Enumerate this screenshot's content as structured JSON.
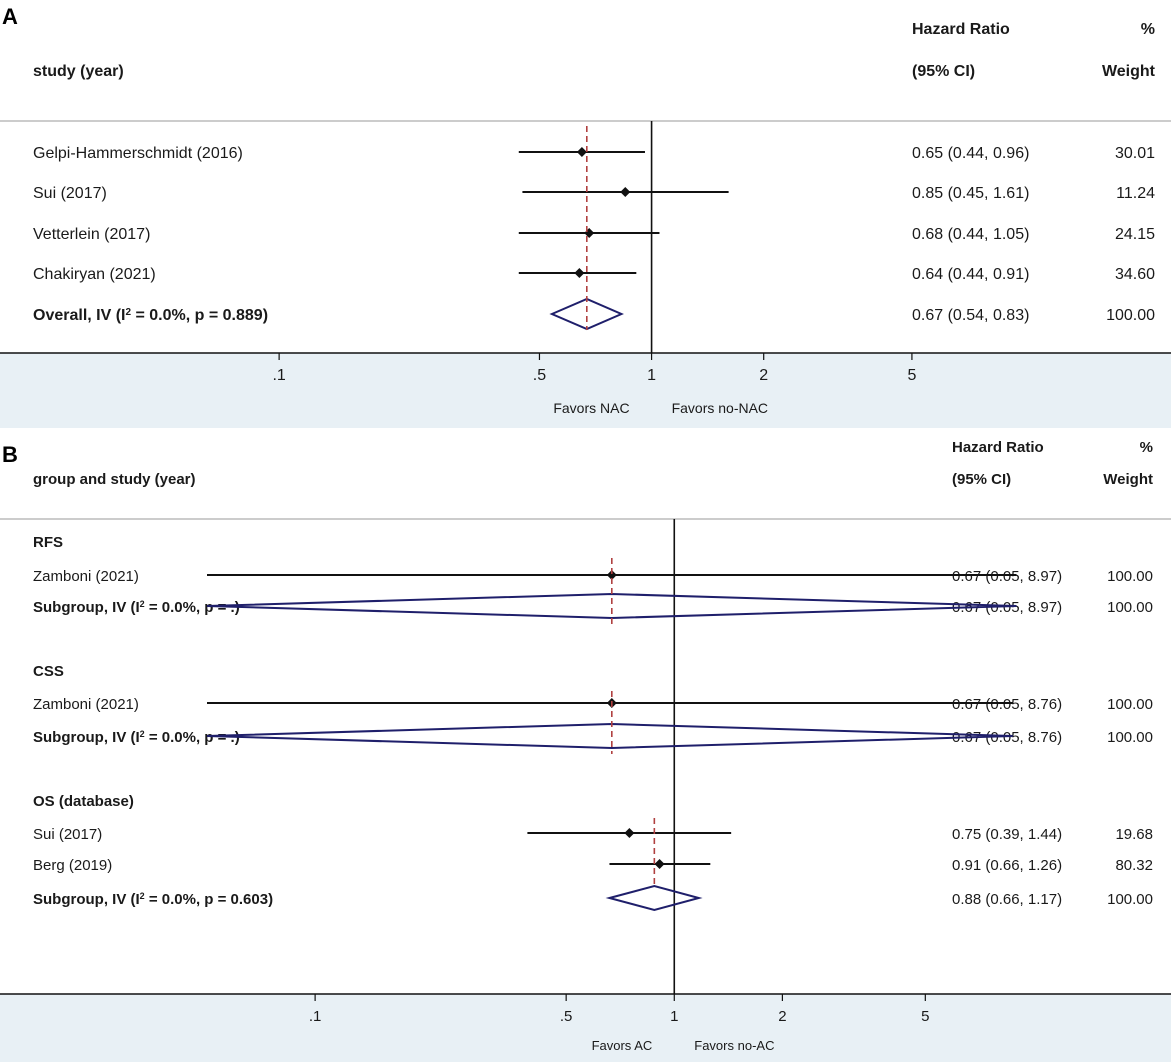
{
  "colors": {
    "axis_band": "#e8f0f5",
    "ci_line": "#111111",
    "diamond": "#1f1f6b",
    "ref_line": "#111111",
    "overall_line": "#b04040",
    "text": "#1a1a1a"
  },
  "chart_data": [
    {
      "type": "forest",
      "panel_label": "A",
      "header": {
        "study_col": "study (year)",
        "hr_col_line1": "Hazard Ratio",
        "hr_col_line2": "(95% CI)",
        "weight_col_line1": "%",
        "weight_col_line2": "Weight"
      },
      "x_scale": "log",
      "xlim": [
        0.05,
        9.0
      ],
      "x_ticks": [
        {
          "value": 0.1,
          "label": ".1"
        },
        {
          "value": 0.5,
          "label": ".5"
        },
        {
          "value": 1,
          "label": "1"
        },
        {
          "value": 2,
          "label": "2"
        },
        {
          "value": 5,
          "label": "5"
        }
      ],
      "favors_left": "Favors NAC",
      "favors_right": "Favors no-NAC",
      "pooled_estimate": 0.67,
      "rows": [
        {
          "kind": "study",
          "label": "Gelpi-Hammerschmidt (2016)",
          "hr": 0.65,
          "lo": 0.44,
          "hi": 0.96,
          "ci_text": "0.65 (0.44, 0.96)",
          "weight": "30.01"
        },
        {
          "kind": "study",
          "label": "Sui (2017)",
          "hr": 0.85,
          "lo": 0.45,
          "hi": 1.61,
          "ci_text": "0.85 (0.45, 1.61)",
          "weight": "11.24"
        },
        {
          "kind": "study",
          "label": "Vetterlein (2017)",
          "hr": 0.68,
          "lo": 0.44,
          "hi": 1.05,
          "ci_text": "0.68 (0.44, 1.05)",
          "weight": "24.15"
        },
        {
          "kind": "study",
          "label": "Chakiryan (2021)",
          "hr": 0.64,
          "lo": 0.44,
          "hi": 0.91,
          "ci_text": "0.64 (0.44, 0.91)",
          "weight": "34.60"
        },
        {
          "kind": "pooled",
          "label_pre": "Overall, IV (I",
          "label_sup": "2",
          "label_post": " = 0.0%, p = 0.889)",
          "hr": 0.67,
          "lo": 0.54,
          "hi": 0.83,
          "ci_text": "0.67 (0.54, 0.83)",
          "weight": "100.00"
        }
      ]
    },
    {
      "type": "forest",
      "panel_label": "B",
      "header": {
        "study_col": "group and study (year)",
        "hr_col_line1": "Hazard Ratio",
        "hr_col_line2": "(95% CI)",
        "weight_col_line1": "%",
        "weight_col_line2": "Weight"
      },
      "x_scale": "log",
      "xlim": [
        0.05,
        9.0
      ],
      "x_ticks": [
        {
          "value": 0.1,
          "label": ".1"
        },
        {
          "value": 0.5,
          "label": ".5"
        },
        {
          "value": 1,
          "label": "1"
        },
        {
          "value": 2,
          "label": "2"
        },
        {
          "value": 5,
          "label": "5"
        }
      ],
      "favors_left": "Favors AC",
      "favors_right": "Favors no-AC",
      "rows": [
        {
          "kind": "group",
          "label": "RFS"
        },
        {
          "kind": "study",
          "label": "Zamboni (2021)",
          "hr": 0.67,
          "lo": 0.05,
          "hi": 8.97,
          "ci_text": "0.67 (0.05, 8.97)",
          "weight": "100.00"
        },
        {
          "kind": "pooled",
          "label_pre": "Subgroup, IV (I",
          "label_sup": "2",
          "label_post": " = 0.0%, p = .)",
          "hr": 0.67,
          "lo": 0.05,
          "hi": 8.97,
          "ci_text": "0.67 (0.05, 8.97)",
          "weight": "100.00"
        },
        {
          "kind": "blank"
        },
        {
          "kind": "group",
          "label": "CSS"
        },
        {
          "kind": "study",
          "label": "Zamboni (2021)",
          "hr": 0.67,
          "lo": 0.05,
          "hi": 8.76,
          "ci_text": "0.67 (0.05, 8.76)",
          "weight": "100.00"
        },
        {
          "kind": "pooled",
          "label_pre": "Subgroup, IV (I",
          "label_sup": "2",
          "label_post": " = 0.0%, p = .)",
          "hr": 0.67,
          "lo": 0.05,
          "hi": 8.76,
          "ci_text": "0.67 (0.05, 8.76)",
          "weight": "100.00"
        },
        {
          "kind": "blank"
        },
        {
          "kind": "group",
          "label": "OS (database)"
        },
        {
          "kind": "study",
          "label": "Sui (2017)",
          "hr": 0.75,
          "lo": 0.39,
          "hi": 1.44,
          "ci_text": "0.75 (0.39, 1.44)",
          "weight": "19.68"
        },
        {
          "kind": "study",
          "label": "Berg (2019)",
          "hr": 0.91,
          "lo": 0.66,
          "hi": 1.26,
          "ci_text": "0.91 (0.66, 1.26)",
          "weight": "80.32"
        },
        {
          "kind": "pooled",
          "label_pre": "Subgroup, IV (I",
          "label_sup": "2",
          "label_post": " = 0.0%, p = 0.603)",
          "hr": 0.88,
          "lo": 0.66,
          "hi": 1.17,
          "ci_text": "0.88 (0.66, 1.17)",
          "weight": "100.00"
        }
      ]
    }
  ]
}
